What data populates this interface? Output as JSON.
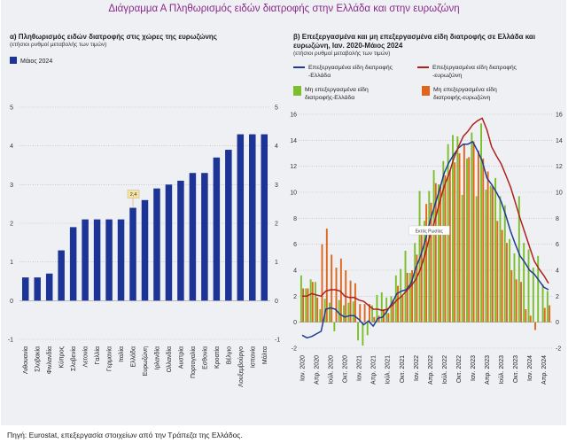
{
  "title": "Διάγραμμα Α Πληθωρισμός ειδών διατροφής στην Ελλάδα και στην ευρωζώνη",
  "source": "Πηγή: Eurostat, επεξεργασία στοιχείων από την Τράπεζα της Ελλάδος.",
  "colors": {
    "bar_a": "#1c3495",
    "line_gr": "#1c3d94",
    "line_ez": "#b0201c",
    "bar_gr": "#7bbf2c",
    "bar_ez": "#e0661c",
    "title": "#8a2a8c",
    "callout": "#f6e3a6"
  },
  "chart_data": [
    {
      "type": "bar",
      "title": "α) Πληθωρισμός ειδών διατροφής στις χώρες της ευρωζώνης",
      "subtitle": "(ετήσιοι ρυθμοί μεταβολής των τιμών)",
      "legend": "Μάιος 2024",
      "categories": [
        "Λιθουανία",
        "Σλοβακία",
        "Φινλανδία",
        "Κύπρος",
        "Σλοβενία",
        "Λετονία",
        "Γαλλία",
        "Γερμανία",
        "Ιταλία",
        "Ελλάδα",
        "Ευρωζώνη",
        "Ιρλανδία",
        "Ολλανδία",
        "Αυστρία",
        "Πορτογαλία",
        "Εσθονία",
        "Κροατία",
        "Βέλγιο",
        "Λουξεμβούργο",
        "Ισπανία",
        "Μάλτα"
      ],
      "values": [
        0.6,
        0.6,
        0.7,
        1.3,
        1.9,
        2.1,
        2.1,
        2.1,
        2.1,
        2.4,
        2.6,
        2.9,
        3.0,
        3.1,
        3.3,
        3.3,
        3.7,
        3.9,
        4.3,
        4.3,
        4.3
      ],
      "callout": "2,4",
      "ylim": [
        -1,
        5
      ],
      "yticks": [
        "-1",
        "0",
        "1",
        "2",
        "3",
        "4",
        "5"
      ]
    },
    {
      "type": "bar+line",
      "title": "β) Επεξεργασμένα και μη επεξεργασμένα είδη διατροφής σε Ελλάδα και ευρωζώνη, Ιαν. 2020-Μάιος 2024",
      "subtitle": "(ετήσιοι ρυθμοί μεταβολής των τιμών)",
      "legend": [
        "Επεξεργασμένα είδη διατροφής -Ελλάδα",
        "Επεξεργασμένα είδη διατροφής -ευρωζώνη",
        "Μη επεξεργασμένα είδη διατροφής-Ελλάδα",
        "Μη επεξεργασμένα είδη διατροφής-ευρωζώνη"
      ],
      "annotation": "Εκτός Ρωσίας",
      "xticks": [
        "Ιαν. 2020",
        "Απρ. 2020",
        "Ιούλ. 2020",
        "Οκτ. 2020",
        "Ιαν. 2021",
        "Απρ. 2021",
        "Ιούλ. 2021",
        "Οκτ. 2021",
        "Ιαν. 2022",
        "Απρ. 2022",
        "Ιούλ. 2022",
        "Οκτ. 2022",
        "Ιαν. 2023",
        "Απρ. 2023",
        "Ιούλ. 2023",
        "Οκτ. 2023",
        "Ιαν. 2024",
        "Απρ. 2024"
      ],
      "yticks_left": [
        "-2",
        "0",
        "2",
        "4",
        "6",
        "8",
        "10",
        "12",
        "14",
        "16"
      ],
      "yticks_right": [
        "-2",
        "0",
        "2",
        "4",
        "6",
        "8",
        "10",
        "12",
        "14",
        "16"
      ],
      "ylim": [
        -2,
        16
      ],
      "series": [
        {
          "name": "Επεξεργασμένα είδη διατροφής -Ελλάδα",
          "values": [
            -1.0,
            -1.2,
            -1.1,
            -0.9,
            -0.7,
            1.0,
            1.1,
            1.0,
            0.6,
            0.4,
            0.5,
            0.5,
            0.2,
            -0.2,
            0.1,
            -0.3,
            0.3,
            0.4,
            0.9,
            1.5,
            2.2,
            2.4,
            2.5,
            3.0,
            4.2,
            5.1,
            6.3,
            7.8,
            9.0,
            10.2,
            11.5,
            12.3,
            12.9,
            13.4,
            13.7,
            13.7,
            13.9,
            13.2,
            12.4,
            11.1,
            10.6,
            10.0,
            9.3,
            8.2,
            7.0,
            6.0,
            5.1,
            4.6,
            4.0,
            3.7,
            3.2,
            2.7,
            2.5
          ]
        },
        {
          "name": "Επεξεργασμένα είδη διατροφής -ευρωζώνη",
          "values": [
            2.0,
            2.0,
            2.2,
            2.1,
            2.0,
            2.4,
            2.5,
            2.5,
            2.4,
            2.0,
            1.9,
            1.9,
            1.7,
            1.6,
            1.3,
            1.0,
            1.0,
            0.9,
            1.0,
            1.3,
            1.7,
            2.0,
            2.4,
            2.8,
            3.3,
            4.1,
            5.3,
            6.7,
            7.8,
            9.2,
            10.5,
            11.4,
            12.6,
            13.5,
            14.3,
            14.7,
            15.2,
            15.5,
            15.7,
            14.8,
            13.5,
            12.8,
            12.2,
            11.3,
            10.4,
            9.2,
            8.0,
            6.9,
            5.8,
            4.7,
            4.1,
            3.6,
            3.0
          ]
        }
      ],
      "bars": [
        {
          "name": "Μη επεξεργασμένα είδη διατροφής-Ελλάδα",
          "values": [
            3.6,
            2.6,
            3.3,
            3.1,
            1.0,
            1.8,
            1.5,
            -0.7,
            1.7,
            1.3,
            1.5,
            1.6,
            -1.4,
            -1.8,
            -1.0,
            1.3,
            2.1,
            2.3,
            1.9,
            2.0,
            3.6,
            4.1,
            5.5,
            3.8,
            6.1,
            10.1,
            7.8,
            10.1,
            11.7,
            10.6,
            12.4,
            13.7,
            14.4,
            14.3,
            9.8,
            12.6,
            14.6,
            9.7,
            15.3,
            10.2,
            10.5,
            11.1,
            9.7,
            9.0,
            6.4,
            5.3,
            9.7,
            6.1,
            5.6,
            4.2,
            5.1,
            2.9,
            2.4
          ]
        },
        {
          "name": "Μη επεξεργασμένα είδη διατροφής-ευρωζώνη",
          "values": [
            2.6,
            2.6,
            3.1,
            1.9,
            6.0,
            7.2,
            5.2,
            4.2,
            4.9,
            4.0,
            3.2,
            3.0,
            1.4,
            1.4,
            1.4,
            0.4,
            0.5,
            1.0,
            0.7,
            1.7,
            2.8,
            2.0,
            3.8,
            4.0,
            5.2,
            7.0,
            9.1,
            9.2,
            10.7,
            10.6,
            11.3,
            11.7,
            12.3,
            13.0,
            13.7,
            12.7,
            13.9,
            13.2,
            12.6,
            11.6,
            10.4,
            7.8,
            7.1,
            6.1,
            4.0,
            3.3,
            3.1,
            1.0,
            0.5,
            -0.6,
            0.0,
            1.1,
            1.3
          ]
        }
      ]
    }
  ]
}
